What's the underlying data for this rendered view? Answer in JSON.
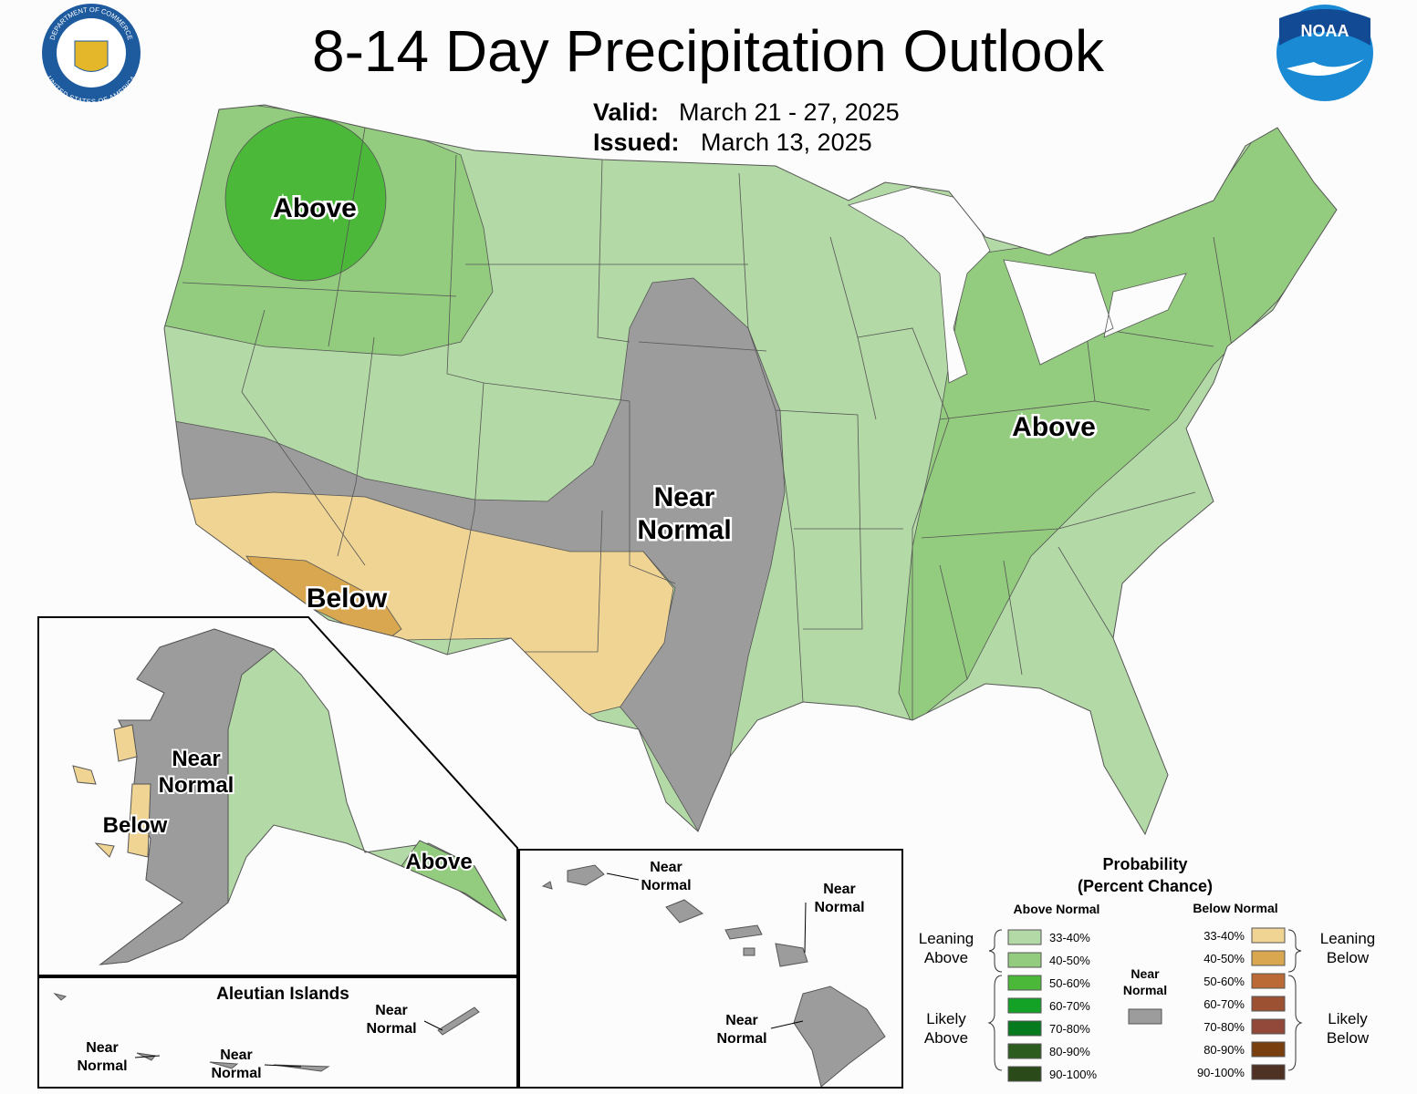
{
  "header": {
    "title": "8-14 Day Precipitation Outlook",
    "valid_label": "Valid:",
    "valid": "March 21 - 27, 2025",
    "issued_label": "Issued:",
    "issued": "March 13, 2025"
  },
  "logos": {
    "commerce_top": "DEPARTMENT OF COMMERCE",
    "commerce_bottom": "UNITED STATES OF AMERICA",
    "noaa": "NOAA"
  },
  "conus_labels": {
    "northwest": [
      "Above"
    ],
    "east": [
      "Above"
    ],
    "central": [
      "Near",
      "Normal"
    ],
    "southwest": [
      "Below"
    ]
  },
  "alaska_labels": {
    "west": [
      "Near",
      "Normal"
    ],
    "southwest": [
      "Below"
    ],
    "southeast": [
      "Above"
    ]
  },
  "aleutian": {
    "title": "Aleutian Islands",
    "labels": [
      [
        "Near",
        "Normal"
      ],
      [
        "Near",
        "Normal"
      ],
      [
        "Near",
        "Normal"
      ]
    ]
  },
  "hawaii_labels": [
    [
      "Near",
      "Normal"
    ],
    [
      "Near",
      "Normal"
    ],
    [
      "Near",
      "Normal"
    ]
  ],
  "legend": {
    "title": [
      "Probability",
      "(Percent Chance)"
    ],
    "above_header": "Above Normal",
    "below_header": "Below Normal",
    "leaning_above": [
      "Leaning",
      "Above"
    ],
    "likely_above": [
      "Likely",
      "Above"
    ],
    "leaning_below": [
      "Leaning",
      "Below"
    ],
    "likely_below": [
      "Likely",
      "Below"
    ],
    "near": [
      "Near",
      "Normal"
    ],
    "near_color": "#9c9c9c",
    "above": [
      {
        "label": "33-40%",
        "color": "#b3d9a6"
      },
      {
        "label": "40-50%",
        "color": "#94cc7f"
      },
      {
        "label": "50-60%",
        "color": "#4cb83a"
      },
      {
        "label": "60-70%",
        "color": "#13a226"
      },
      {
        "label": "70-80%",
        "color": "#067a1f"
      },
      {
        "label": "80-90%",
        "color": "#2c5d1f"
      },
      {
        "label": "90-100%",
        "color": "#2a4b19"
      }
    ],
    "below": [
      {
        "label": "33-40%",
        "color": "#f0d493"
      },
      {
        "label": "40-50%",
        "color": "#d8a750"
      },
      {
        "label": "50-60%",
        "color": "#bb6a35"
      },
      {
        "label": "60-70%",
        "color": "#9b5132"
      },
      {
        "label": "70-80%",
        "color": "#93493a"
      },
      {
        "label": "80-90%",
        "color": "#7a3f0e"
      },
      {
        "label": "90-100%",
        "color": "#4e3122"
      }
    ]
  }
}
